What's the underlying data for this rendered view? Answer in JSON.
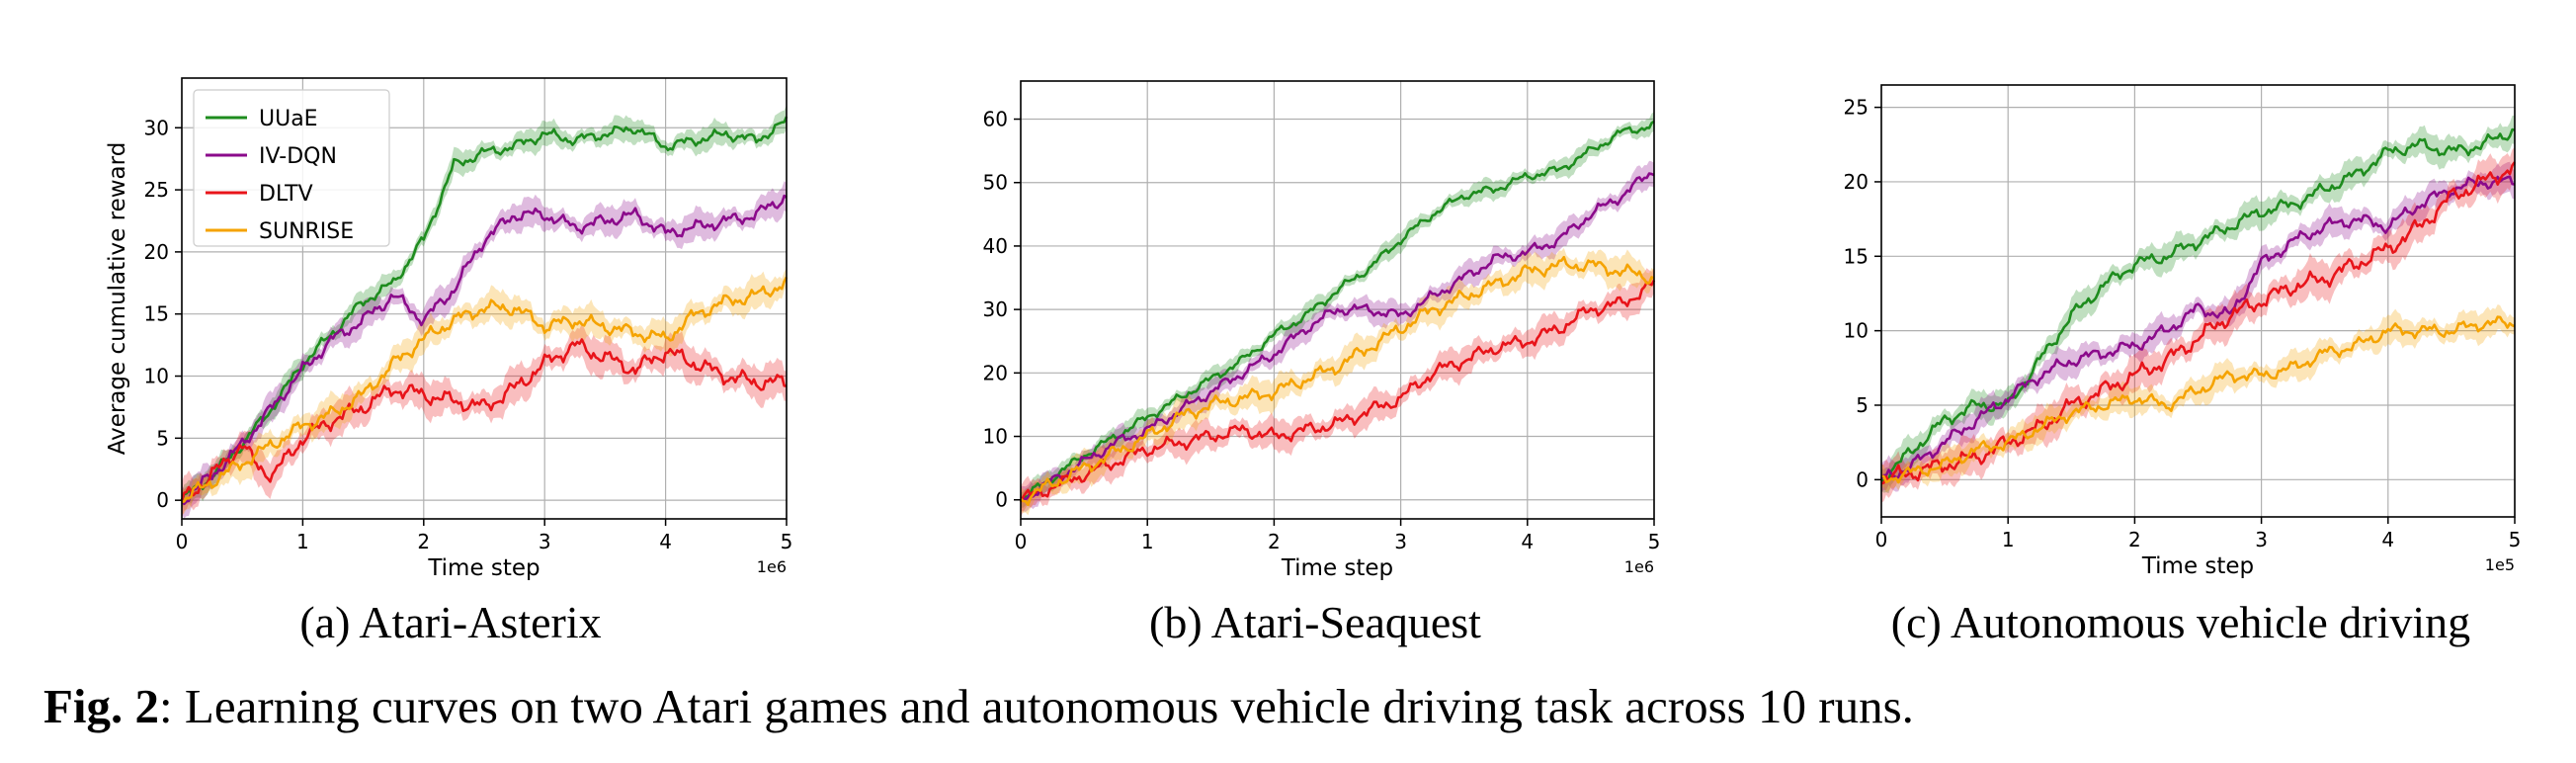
{
  "caption": {
    "label": "Fig. 2",
    "text": ": Learning curves on two Atari games and autonomous vehicle driving task across 10 runs."
  },
  "colors": {
    "UUaE": "#1e8c1e",
    "IV-DQN": "#8b0a8b",
    "DLTV": "#e8141a",
    "SUNRISE": "#f5a300"
  },
  "chart_data": [
    {
      "type": "line",
      "subcaption": "(a) Atari-Asterix",
      "xlabel": "Time step",
      "ylabel": "Average cumulative reward",
      "x_offset": "1e6",
      "xlim": [
        0,
        5
      ],
      "ylim": [
        -1.5,
        34
      ],
      "xticks": [
        0,
        1,
        2,
        3,
        4,
        5
      ],
      "yticks": [
        0,
        5,
        10,
        15,
        20,
        25,
        30
      ],
      "grid": true,
      "legend": "top-left",
      "series": [
        {
          "name": "UUaE",
          "band": 1.0,
          "x": [
            0,
            0.25,
            0.5,
            0.75,
            1.0,
            1.25,
            1.5,
            1.75,
            2.0,
            2.25,
            2.5,
            2.75,
            3.0,
            3.25,
            3.5,
            3.75,
            4.0,
            4.25,
            4.5,
            4.75,
            5.0
          ],
          "y": [
            0,
            2,
            4.5,
            7.5,
            11,
            13.5,
            16,
            17.5,
            21,
            27,
            28,
            28.5,
            29.5,
            29,
            29.5,
            30,
            28.5,
            29,
            29.5,
            29,
            30.5
          ]
        },
        {
          "name": "IV-DQN",
          "band": 1.2,
          "x": [
            0,
            0.25,
            0.5,
            0.75,
            1.0,
            1.25,
            1.5,
            1.75,
            2.0,
            2.25,
            2.5,
            2.75,
            3.0,
            3.25,
            3.5,
            3.75,
            4.0,
            4.25,
            4.5,
            4.75,
            5.0
          ],
          "y": [
            0,
            2,
            4.5,
            7.5,
            10.5,
            13,
            14.5,
            16.5,
            14.5,
            17,
            21,
            23,
            23,
            22,
            22.5,
            23,
            21.5,
            22,
            22.5,
            23,
            24.5
          ]
        },
        {
          "name": "DLTV",
          "band": 1.5,
          "x": [
            0,
            0.25,
            0.5,
            0.6,
            0.75,
            1.0,
            1.25,
            1.5,
            1.75,
            2.0,
            2.25,
            2.5,
            2.75,
            3.0,
            3.25,
            3.5,
            3.75,
            4.0,
            4.25,
            4.5,
            4.75,
            5.0
          ],
          "y": [
            0,
            2,
            4.5,
            3,
            2,
            5,
            6.5,
            7.5,
            9,
            8.5,
            8,
            7.5,
            9,
            11,
            12.5,
            11.5,
            10.5,
            12,
            11,
            10,
            9.5,
            9.5
          ]
        },
        {
          "name": "SUNRISE",
          "band": 1.3,
          "x": [
            0,
            0.25,
            0.5,
            0.75,
            1.0,
            1.25,
            1.5,
            1.75,
            2.0,
            2.25,
            2.5,
            2.75,
            3.0,
            3.25,
            3.5,
            3.75,
            4.0,
            4.25,
            4.5,
            4.75,
            5.0
          ],
          "y": [
            0,
            1.5,
            3,
            4.5,
            6,
            7,
            8.5,
            11,
            13,
            14.5,
            15.5,
            15.5,
            14,
            14.5,
            14,
            13.5,
            13,
            15,
            16,
            16.5,
            17.5
          ]
        }
      ]
    },
    {
      "type": "line",
      "subcaption": "(b) Atari-Seaquest",
      "xlabel": "Time step",
      "ylabel": "",
      "x_offset": "1e6",
      "xlim": [
        0,
        5
      ],
      "ylim": [
        -3,
        66
      ],
      "xticks": [
        0,
        1,
        2,
        3,
        4,
        5
      ],
      "yticks": [
        0,
        10,
        20,
        30,
        40,
        50,
        60
      ],
      "grid": true,
      "legend": "",
      "series": [
        {
          "name": "UUaE",
          "band": 1.6,
          "x": [
            0,
            0.25,
            0.5,
            0.75,
            1.0,
            1.25,
            1.5,
            1.75,
            2.0,
            2.25,
            2.5,
            2.75,
            3.0,
            3.25,
            3.5,
            3.75,
            4.0,
            4.25,
            4.5,
            4.75,
            5.0
          ],
          "y": [
            0,
            3.5,
            7,
            10,
            13,
            16,
            19,
            22,
            26,
            29,
            33,
            36.5,
            41,
            45,
            48,
            49,
            51,
            52,
            55,
            58,
            59
          ]
        },
        {
          "name": "IV-DQN",
          "band": 2.0,
          "x": [
            0,
            0.25,
            0.5,
            0.75,
            1.0,
            1.25,
            1.5,
            1.75,
            2.0,
            2.25,
            2.5,
            2.75,
            3.0,
            3.25,
            3.5,
            3.75,
            4.0,
            4.25,
            4.5,
            4.75,
            5.0
          ],
          "y": [
            0,
            3,
            6,
            9,
            11,
            14,
            17,
            20,
            23,
            27,
            30,
            30,
            29,
            32,
            35,
            38,
            39,
            41,
            45,
            48,
            52
          ]
        },
        {
          "name": "DLTV",
          "band": 2.5,
          "x": [
            0,
            0.25,
            0.5,
            0.75,
            1.0,
            1.25,
            1.5,
            1.75,
            2.0,
            2.25,
            2.5,
            2.75,
            3.0,
            3.25,
            3.5,
            3.75,
            4.0,
            4.25,
            4.5,
            4.75,
            5.0
          ],
          "y": [
            0,
            2,
            4,
            6,
            8,
            9,
            10,
            11,
            10,
            11,
            12,
            14,
            16,
            20,
            22,
            24,
            25,
            27,
            30,
            31,
            34
          ]
        },
        {
          "name": "SUNRISE",
          "band": 2.5,
          "x": [
            0,
            0.25,
            0.5,
            0.75,
            1.0,
            1.25,
            1.5,
            1.75,
            2.0,
            2.25,
            2.5,
            2.75,
            3.0,
            3.25,
            3.5,
            3.75,
            4.0,
            4.25,
            4.5,
            4.75,
            5.0
          ],
          "y": [
            0,
            2.5,
            5,
            7.5,
            10,
            13,
            15,
            16,
            17,
            19,
            21,
            24,
            27,
            30,
            32,
            34,
            36,
            37,
            37,
            36,
            35
          ]
        }
      ]
    },
    {
      "type": "line",
      "subcaption": "(c) Autonomous vehicle driving",
      "xlabel": "Time step",
      "ylabel": "",
      "x_offset": "1e5",
      "xlim": [
        0,
        5
      ],
      "ylim": [
        -2.5,
        26.5
      ],
      "xticks": [
        0,
        1,
        2,
        3,
        4,
        5
      ],
      "yticks": [
        0,
        5,
        10,
        15,
        20,
        25
      ],
      "grid": true,
      "legend": "",
      "series": [
        {
          "name": "UUaE",
          "band": 1.0,
          "x": [
            0,
            0.25,
            0.5,
            0.75,
            1.0,
            1.25,
            1.5,
            1.75,
            2.0,
            2.25,
            2.5,
            2.75,
            3.0,
            3.25,
            3.5,
            3.75,
            4.0,
            4.25,
            4.5,
            4.75,
            5.0
          ],
          "y": [
            0,
            2,
            4,
            5,
            5,
            8,
            11,
            13,
            14.5,
            15,
            16,
            17,
            18,
            18.5,
            19.5,
            20.5,
            22,
            22.5,
            22,
            22.5,
            23.5
          ]
        },
        {
          "name": "IV-DQN",
          "band": 1.0,
          "x": [
            0,
            0.25,
            0.5,
            0.75,
            1.0,
            1.25,
            1.5,
            1.75,
            2.0,
            2.25,
            2.5,
            2.75,
            3.0,
            3.25,
            3.5,
            3.75,
            4.0,
            4.25,
            4.5,
            4.75,
            5.0
          ],
          "y": [
            0,
            1,
            2.5,
            4,
            5.5,
            7,
            8,
            8.5,
            9,
            10,
            11.5,
            11,
            14.5,
            16,
            17,
            17.5,
            17,
            18.5,
            19.5,
            20,
            20
          ]
        },
        {
          "name": "DLTV",
          "band": 1.3,
          "x": [
            0,
            0.25,
            0.5,
            0.75,
            1.0,
            1.25,
            1.5,
            1.75,
            2.0,
            2.25,
            2.5,
            2.75,
            3.0,
            3.25,
            3.5,
            3.75,
            4.0,
            4.25,
            4.5,
            4.75,
            5.0
          ],
          "y": [
            0,
            0.5,
            1,
            1.5,
            2.5,
            3.5,
            5,
            6,
            7,
            8,
            9.5,
            11,
            12,
            13,
            13.5,
            14.5,
            15.5,
            17,
            19,
            20,
            21
          ]
        },
        {
          "name": "SUNRISE",
          "band": 1.0,
          "x": [
            0,
            0.25,
            0.5,
            0.75,
            1.0,
            1.25,
            1.5,
            1.75,
            2.0,
            2.25,
            2.5,
            2.75,
            3.0,
            3.25,
            3.5,
            3.75,
            4.0,
            4.25,
            4.5,
            4.75,
            5.0
          ],
          "y": [
            0,
            0.5,
            1,
            2,
            2.5,
            3.5,
            4.5,
            5,
            5.5,
            5,
            6,
            7,
            7,
            7.5,
            8.5,
            9,
            10,
            10,
            10,
            10.5,
            10.5
          ]
        }
      ]
    }
  ]
}
